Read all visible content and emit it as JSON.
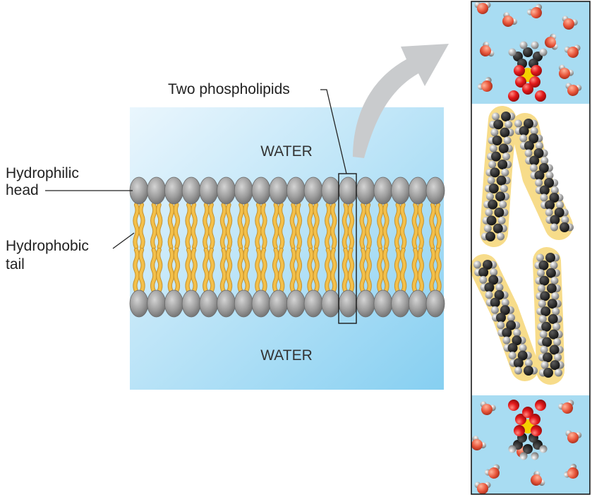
{
  "labels": {
    "two_phospholipids": "Two phospholipids",
    "water_top": "WATER",
    "water_bottom": "WATER",
    "hydrophilic_line1": "Hydrophilic",
    "hydrophilic_line2": "head",
    "hydrophobic_line1": "Hydrophobic",
    "hydrophobic_line2": "tail"
  },
  "colors": {
    "water_light": "#e6f4fc",
    "water_dark": "#8fd3f2",
    "head_gray": "#9a9a9a",
    "tail_yellow": "#f3c04a",
    "tail_halo": "#f7dc8a",
    "oxygen_red": "#e0181a",
    "phosphate_yellow": "#f4d000",
    "carbon_black": "#1c1c1c",
    "hydrogen_gray": "#a9a9a9",
    "arrow_gray": "#c8cacc"
  },
  "icons": {
    "arrow": "curved-arrow-icon",
    "head": "phospholipid-head-icon",
    "tail": "fatty-acid-tail-icon",
    "water_molecule": "water-molecule-icon"
  },
  "membrane": {
    "head_count_per_layer": 18
  }
}
